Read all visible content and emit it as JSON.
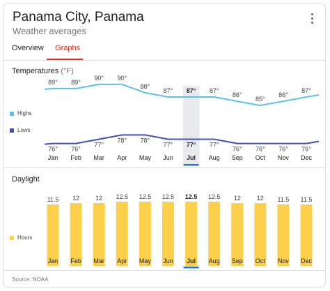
{
  "header": {
    "title": "Panama City, Panama",
    "subtitle": "Weather averages"
  },
  "tabs": [
    {
      "label": "Overview",
      "active": false
    },
    {
      "label": "Graphs",
      "active": true
    }
  ],
  "temperatures": {
    "heading": "Temperatures",
    "unit": "(°F)",
    "legend_highs": "Highs",
    "legend_lows": "Lows"
  },
  "daylight": {
    "heading": "Daylight",
    "legend_hours": "Hours"
  },
  "footer": {
    "source": "Source: NOAA"
  },
  "colors": {
    "highs": "#5bc0eb",
    "lows": "#3f51b5",
    "hours": "#fdd04b",
    "accent": "#d93025",
    "selected": "#1a73e8",
    "highlight": "#e8eaed"
  },
  "selected_month": "Jul",
  "chart_data": [
    {
      "type": "line",
      "categories": [
        "Jan",
        "Feb",
        "Mar",
        "Apr",
        "May",
        "Jun",
        "Jul",
        "Aug",
        "Sep",
        "Oct",
        "Nov",
        "Dec"
      ],
      "series": [
        {
          "name": "Highs",
          "values": [
            89,
            89,
            90,
            90,
            88,
            87,
            87,
            87,
            86,
            85,
            86,
            87
          ],
          "labels": [
            "89°",
            "89°",
            "90°",
            "90°",
            "88°",
            "87°",
            "87°",
            "87°",
            "86°",
            "85°",
            "86°",
            "87°"
          ]
        },
        {
          "name": "Lows",
          "values": [
            76,
            76,
            77,
            78,
            78,
            77,
            77,
            77,
            76,
            76,
            76,
            76
          ],
          "labels": [
            "76°",
            "76°",
            "77°",
            "78°",
            "78°",
            "77°",
            "77°",
            "77°",
            "76°",
            "76°",
            "76°",
            "76°"
          ]
        }
      ],
      "title": "Temperatures",
      "legend": "left"
    },
    {
      "type": "bar",
      "categories": [
        "Jan",
        "Feb",
        "Mar",
        "Apr",
        "May",
        "Jun",
        "Jul",
        "Aug",
        "Sep",
        "Oct",
        "Nov",
        "Dec"
      ],
      "series": [
        {
          "name": "Hours",
          "values": [
            11.5,
            12,
            12,
            12.5,
            12.5,
            12.5,
            12.5,
            12.5,
            12,
            12,
            11.5,
            11.5
          ],
          "labels": [
            "11.5",
            "12",
            "12",
            "12.5",
            "12.5",
            "12.5",
            "12.5",
            "12.5",
            "12",
            "12",
            "11.5",
            "11.5"
          ]
        }
      ],
      "title": "Daylight",
      "legend": "left"
    }
  ]
}
